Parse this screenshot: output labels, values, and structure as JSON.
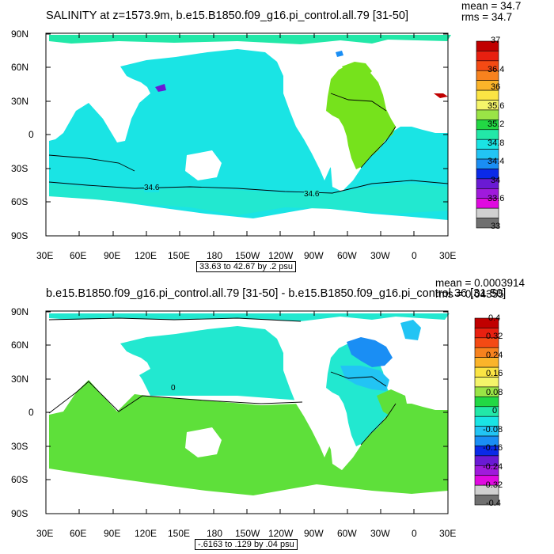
{
  "panel1": {
    "title": "SALINITY at z=1573.9m, b.e15.B1850.f09_g16.pi_control.all.79 [31-50]",
    "stats": {
      "mean": "mean = 34.7",
      "rms": "rms = 34.7"
    },
    "contour_note": "33.63 to 42.67 by .2 psu",
    "contour_labels": [
      "34.6",
      "34.6"
    ],
    "colorbar": {
      "labels": [
        "37",
        "36.4",
        "36",
        "35.6",
        "35.2",
        "34.8",
        "34.4",
        "34",
        "33.6",
        "33"
      ],
      "colors": [
        "#c00000",
        "#e82010",
        "#f44a14",
        "#f7821e",
        "#fbb42a",
        "#fbe444",
        "#f4f46a",
        "#9ae446",
        "#22d844",
        "#22e8a8",
        "#1ae4e4",
        "#22c4f4",
        "#1a8ef4",
        "#0a2ae8",
        "#6a1ad4",
        "#a01adc",
        "#e00ae0",
        "#d0d0d0",
        "#707070"
      ]
    }
  },
  "panel2": {
    "title": "b.e15.B1850.f09_g16.pi_control.all.79 [31-50] - b.e15.B1850.f09_g16.pi_control.36 [31-50]",
    "stats": {
      "mean": "mean = 0.0003914",
      "rms": "rms = 0.04355"
    },
    "contour_note": "-.6163 to .129 by .04 psu",
    "contour_labels": [
      "0"
    ],
    "colorbar": {
      "labels": [
        "0.4",
        "0.32",
        "0.24",
        "0.16",
        "0.08",
        "0",
        "-0.08",
        "-0.16",
        "-0.24",
        "-0.32",
        "-0.4"
      ],
      "colors": [
        "#c00000",
        "#e82010",
        "#f44a14",
        "#f7821e",
        "#fbb42a",
        "#fbe444",
        "#f4f46a",
        "#9ae446",
        "#22d844",
        "#22e8a8",
        "#1ae4e4",
        "#22c4f4",
        "#1a8ef4",
        "#0a2ae8",
        "#6a1ad4",
        "#a01adc",
        "#e00ae0",
        "#d0d0d0",
        "#707070"
      ]
    }
  },
  "axes": {
    "lat_labels": [
      "90N",
      "60N",
      "30N",
      "0",
      "30S",
      "60S",
      "90S"
    ],
    "lon_labels": [
      "30E",
      "60E",
      "90E",
      "120E",
      "150E",
      "180",
      "150W",
      "120W",
      "90W",
      "60W",
      "30W",
      "0",
      "30E"
    ]
  },
  "colors": {
    "land": "#ffffff",
    "p1_ocean": "#1ae4e4",
    "p1_south": "#22e8d0",
    "p1_atlantic": "#76e21c",
    "p2_ocean": "#22e8a8",
    "p2_warm": "#5ee03a",
    "p2_cold": "#1a8ef4"
  }
}
